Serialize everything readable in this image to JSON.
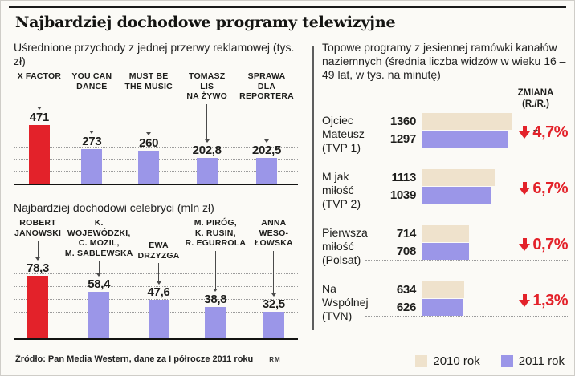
{
  "page": {
    "title": "Najbardziej dochodowe programy telewizyjne",
    "source": "Źródło: Pan Media Western, dane za I półrocze 2011 roku",
    "credit": "RM"
  },
  "colors": {
    "red": "#e3222a",
    "purple": "#9b96e8",
    "beige": "#efe2cc",
    "text": "#1d1d1b"
  },
  "legend": {
    "items": [
      {
        "label": "2010 rok",
        "color_key": "beige"
      },
      {
        "label": "2011 rok",
        "color_key": "purple"
      }
    ]
  },
  "chart_data": [
    {
      "type": "bar",
      "title": "Uśrednione przychody z jednej przerwy reklamowej (tys. zł)",
      "categories": [
        "X FACTOR",
        "YOU CAN DANCE",
        "MUST BE THE MUSIC",
        "TOMASZ LIS NA ŻYWO",
        "SPRAWA DLA REPORTERA"
      ],
      "categories_lines": [
        [
          "X FACTOR"
        ],
        [
          "YOU CAN",
          "DANCE"
        ],
        [
          "MUST BE",
          "THE MUSIC"
        ],
        [
          "TOMASZ",
          "LIS",
          "NA ŻYWO"
        ],
        [
          "SPRAWA",
          "DLA",
          "REPORTERA"
        ]
      ],
      "values": [
        471,
        273,
        260,
        202.8,
        202.5
      ],
      "value_labels": [
        "471",
        "273",
        "260",
        "202,8",
        "202,5"
      ],
      "highlight_index": 0,
      "ylim": [
        0,
        500
      ],
      "grid": true,
      "legend_position": "none"
    },
    {
      "type": "bar",
      "title": "Najbardziej dochodowi celebryci (mln zł)",
      "categories": [
        "ROBERT JANOWSKI",
        "K. WOJEWÓDZKI, C. MOZIL, M. SABLEWSKA",
        "EWA DRZYZGA",
        "M. PIRÓG, K. RUSIN, R. EGURROLA",
        "ANNA WESO-ŁOWSKA"
      ],
      "categories_lines": [
        [
          "ROBERT",
          "JANOWSKI"
        ],
        [
          "K. WOJEWÓDZKI,",
          "C. MOZIL,",
          "M. SABLEWSKA"
        ],
        [
          "EWA",
          "DRZYZGA"
        ],
        [
          "M. PIRÓG,",
          "K. RUSIN,",
          "R. EGURROLA"
        ],
        [
          "ANNA",
          "WESO-",
          "ŁOWSKA"
        ]
      ],
      "values": [
        78.3,
        58.4,
        47.6,
        38.8,
        32.5
      ],
      "value_labels": [
        "78,3",
        "58,4",
        "47,6",
        "38,8",
        "32,5"
      ],
      "highlight_index": 0,
      "ylim": [
        0,
        80
      ],
      "grid": true,
      "legend_position": "none"
    },
    {
      "type": "bar-horizontal-grouped",
      "title": "Topowe programy z jesiennej ramówki kanałów naziemnych (średnia liczba widzów w wieku 16 – 49 lat, w tys. na minutę)",
      "change_header_lines": [
        "ZMIANA",
        "(R./R.)"
      ],
      "xlim": [
        0,
        1400
      ],
      "series_names": [
        "2010 rok",
        "2011 rok"
      ],
      "rows": [
        {
          "label": "Ojciec Mateusz (TVP 1)",
          "label_lines": [
            "Ojciec",
            "Mateusz",
            "(TVP 1)"
          ],
          "v2010": 1360,
          "v2011": 1297,
          "v2010_label": "1360",
          "v2011_label": "1297",
          "change": "4,7%",
          "change_direction": "down"
        },
        {
          "label": "M jak miłość (TVP 2)",
          "label_lines": [
            "M jak",
            "miłość",
            "(TVP 2)"
          ],
          "v2010": 1113,
          "v2011": 1039,
          "v2010_label": "1113",
          "v2011_label": "1039",
          "change": "6,7%",
          "change_direction": "down"
        },
        {
          "label": "Pierwsza miłość (Polsat)",
          "label_lines": [
            "Pierwsza",
            "miłość",
            "(Polsat)"
          ],
          "v2010": 714,
          "v2011": 708,
          "v2010_label": "714",
          "v2011_label": "708",
          "change": "0,7%",
          "change_direction": "down"
        },
        {
          "label": "Na Wspólnej (TVN)",
          "label_lines": [
            "Na",
            "Wspólnej",
            "(TVN)"
          ],
          "v2010": 634,
          "v2011": 626,
          "v2010_label": "634",
          "v2011_label": "626",
          "change": "1,3%",
          "change_direction": "down"
        }
      ],
      "legend_position": "bottom-right"
    }
  ]
}
